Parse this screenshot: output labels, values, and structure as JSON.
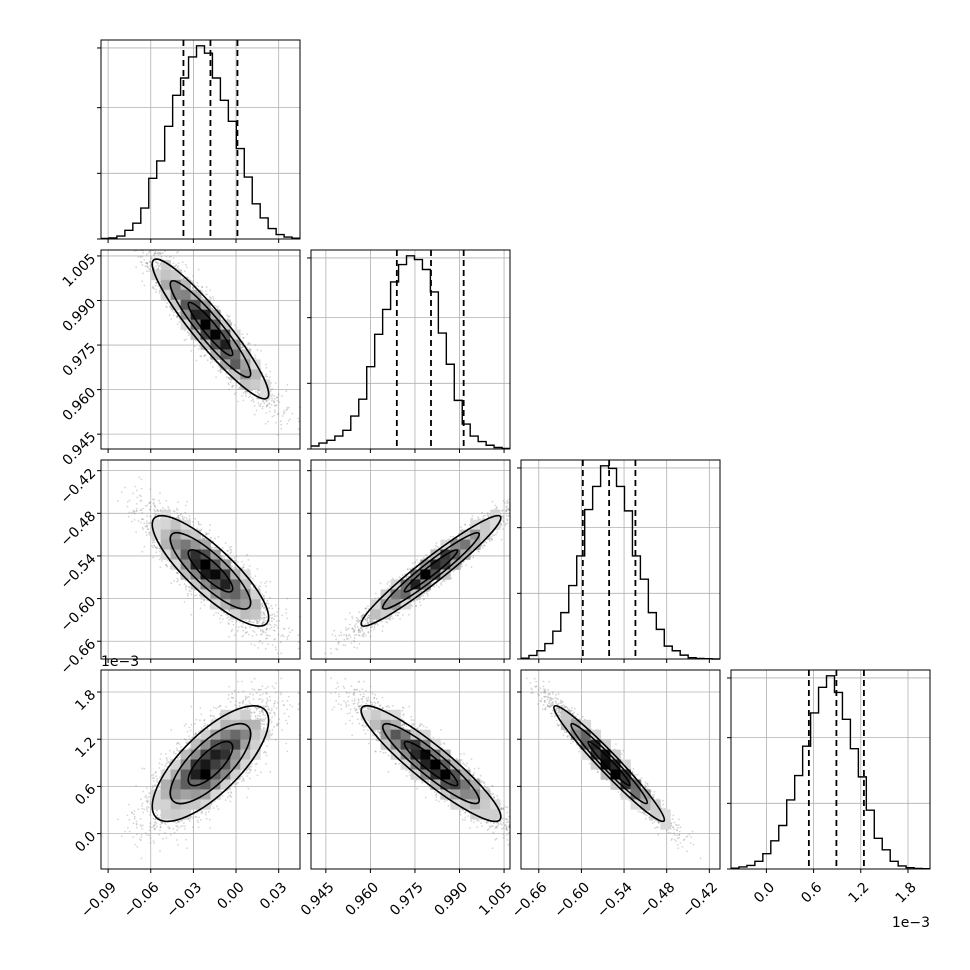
{
  "chart_data": {
    "type": "corner",
    "grid": true,
    "parameters": [
      {
        "ticks": [
          -0.09,
          -0.06,
          -0.03,
          0.0,
          0.03
        ],
        "tick_labels": [
          "−0.09",
          "−0.06",
          "−0.03",
          "0.00",
          "0.03"
        ],
        "range": [
          -0.095,
          0.045
        ],
        "quantiles": [
          -0.037,
          -0.018,
          0.001
        ],
        "hist": [
          0.2,
          0.4,
          1.2,
          3.5,
          6.4,
          12.5,
          24.5,
          31.5,
          45.5,
          58.0,
          65.0,
          73.5,
          78.0,
          75.0,
          65.0,
          56.0,
          47.5,
          36.5,
          25.0,
          14.2,
          8.5,
          4.2,
          1.8,
          0.8,
          0.3
        ]
      },
      {
        "ticks": [
          0.945,
          0.96,
          0.975,
          0.99,
          1.005
        ],
        "tick_labels": [
          "0.945",
          "0.960",
          "0.975",
          "0.990",
          "1.005"
        ],
        "range": [
          0.94,
          1.007
        ],
        "quantiles": [
          0.9689,
          0.9804,
          0.9914
        ],
        "hist": [
          1.2,
          2.4,
          3.5,
          5.2,
          7.5,
          13.2,
          20.0,
          33.0,
          46.0,
          56.0,
          67.0,
          74.0,
          77.5,
          76.0,
          72.0,
          63.0,
          46.5,
          34.0,
          19.5,
          10.0,
          5.2,
          3.0,
          1.5,
          0.6,
          0.2
        ]
      },
      {
        "ticks": [
          -0.66,
          -0.6,
          -0.54,
          -0.48,
          -0.42
        ],
        "tick_labels": [
          "−0.66",
          "−0.60",
          "−0.54",
          "−0.48",
          "−0.42"
        ],
        "range": [
          -0.685,
          -0.405
        ],
        "quantiles": [
          -0.598,
          -0.561,
          -0.524
        ],
        "hist": [
          0.3,
          1.4,
          3.2,
          6.0,
          10.8,
          18.0,
          28.5,
          40.0,
          58.0,
          67.0,
          75.0,
          74.0,
          67.0,
          57.5,
          40.0,
          31.0,
          18.0,
          11.5,
          5.0,
          3.2,
          1.5,
          0.5,
          0.2,
          0.1,
          0.0
        ]
      },
      {
        "ticks": [
          0.0,
          0.6,
          1.2,
          1.8
        ],
        "tick_labels": [
          "0.0",
          "0.6",
          "1.2",
          "1.8"
        ],
        "scale_label": "1e−3",
        "range": [
          -0.45,
          2.08
        ],
        "quantiles": [
          0.54,
          0.89,
          1.24
        ],
        "hist": [
          0.3,
          0.8,
          1.4,
          3.0,
          6.0,
          11.0,
          17.0,
          27.0,
          36.5,
          48.0,
          61.0,
          71.0,
          75.5,
          69.0,
          58.5,
          47.0,
          36.0,
          23.0,
          12.0,
          7.5,
          3.0,
          1.2,
          0.5,
          0.2,
          0.1
        ]
      }
    ]
  }
}
